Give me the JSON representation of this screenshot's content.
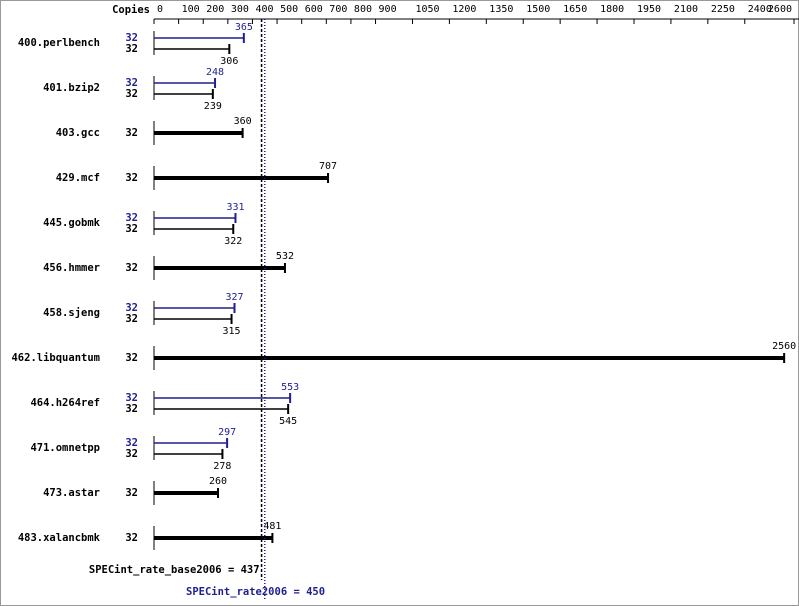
{
  "chart_data": {
    "type": "bar",
    "copies_label": "Copies",
    "categories": [
      "400.perlbench",
      "401.bzip2",
      "403.gcc",
      "429.mcf",
      "445.gobmk",
      "456.hmmer",
      "458.sjeng",
      "462.libquantum",
      "464.h264ref",
      "471.omnetpp",
      "473.astar",
      "483.xalancbmk"
    ],
    "series": [
      {
        "color": "#1f1f8f",
        "copies": [
          32,
          32,
          null,
          null,
          32,
          null,
          32,
          null,
          32,
          32,
          null,
          null
        ],
        "values": [
          365,
          248,
          null,
          null,
          331,
          null,
          327,
          null,
          553,
          297,
          null,
          null
        ]
      },
      {
        "color": "#000000",
        "copies": [
          32,
          32,
          32,
          32,
          32,
          32,
          32,
          32,
          32,
          32,
          32,
          32
        ],
        "values": [
          306,
          239,
          360,
          707,
          322,
          532,
          315,
          2560,
          545,
          278,
          260,
          481
        ]
      }
    ],
    "xlim": [
      0,
      2600
    ],
    "xticks": [
      0,
      100,
      200,
      300,
      400,
      500,
      600,
      700,
      800,
      900,
      1050,
      1200,
      1350,
      1500,
      1650,
      1800,
      1950,
      2100,
      2250,
      2400,
      2600
    ],
    "means": [
      {
        "label": "SPECint_rate_base2006 = 437",
        "value": 437,
        "color": "#000000"
      },
      {
        "label": "SPECint_rate2006 = 450",
        "value": 450,
        "color": "#1f1f8f"
      }
    ]
  }
}
